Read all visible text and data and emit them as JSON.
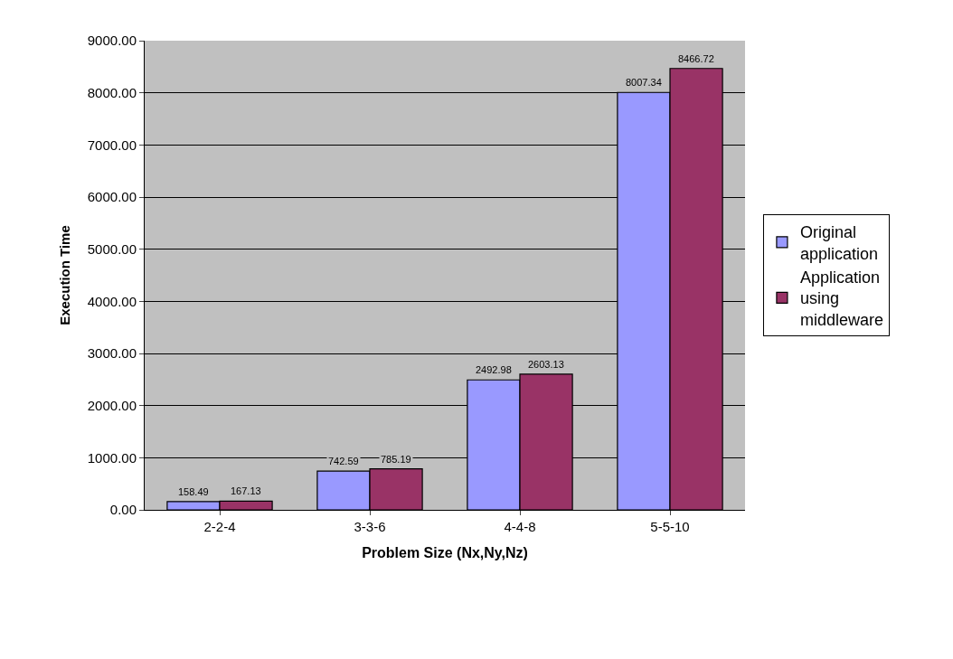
{
  "chart_data": {
    "type": "bar",
    "xlabel": "Problem Size (Nx,Ny,Nz)",
    "ylabel": "Execution Time",
    "categories": [
      "2-2-4",
      "3-3-6",
      "4-4-8",
      "5-5-10"
    ],
    "series": [
      {
        "name": "Original application",
        "color": "#9999ff",
        "values": [
          158.49,
          742.59,
          2492.98,
          8007.34
        ]
      },
      {
        "name": "Application using middleware",
        "color": "#993366",
        "values": [
          167.13,
          785.19,
          2603.13,
          8466.72
        ]
      }
    ],
    "ylim": [
      0,
      9000
    ],
    "yticks": [
      {
        "value": 0,
        "label": "0.00"
      },
      {
        "value": 1000,
        "label": "1000.00"
      },
      {
        "value": 2000,
        "label": "2000.00"
      },
      {
        "value": 3000,
        "label": "3000.00"
      },
      {
        "value": 4000,
        "label": "4000.00"
      },
      {
        "value": 5000,
        "label": "5000.00"
      },
      {
        "value": 6000,
        "label": "6000.00"
      },
      {
        "value": 7000,
        "label": "7000.00"
      },
      {
        "value": 8000,
        "label": "8000.00"
      },
      {
        "value": 9000,
        "label": "9000.00"
      }
    ],
    "grid": "y",
    "legend": "right",
    "data_labels": true
  }
}
